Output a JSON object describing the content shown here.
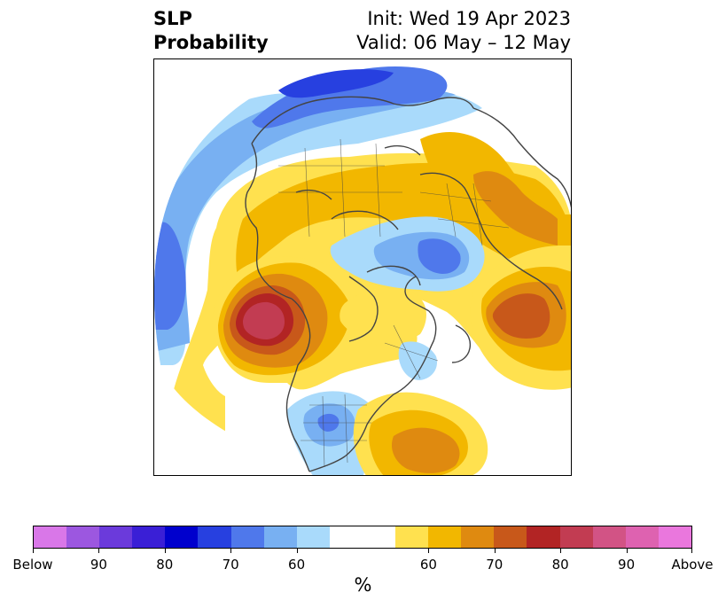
{
  "header": {
    "title_line1": "SLP",
    "title_line2": "Probability",
    "init_line": "Init: Wed 19 Apr 2023",
    "valid_line": "Valid: 06 May – 12 May"
  },
  "colorbar": {
    "unit": "%",
    "segments": [
      {
        "color": "#d977e8"
      },
      {
        "color": "#9c57e0"
      },
      {
        "color": "#6b3adb"
      },
      {
        "color": "#3a1fd6"
      },
      {
        "color": "#0000cd"
      },
      {
        "color": "#2740e0"
      },
      {
        "color": "#4f78eb"
      },
      {
        "color": "#78b0f2"
      },
      {
        "color": "#a9dafb"
      },
      {
        "color": "#ffffff"
      },
      {
        "color": "#ffe14f"
      },
      {
        "color": "#f2b700"
      },
      {
        "color": "#df8a10"
      },
      {
        "color": "#c8581a"
      },
      {
        "color": "#b22424"
      },
      {
        "color": "#c23c52"
      },
      {
        "color": "#d25385"
      },
      {
        "color": "#de62b0"
      },
      {
        "color": "#ea77dd"
      }
    ],
    "tick_labels": [
      "Below",
      "90",
      "80",
      "70",
      "60",
      "60",
      "70",
      "80",
      "90",
      "Above"
    ]
  },
  "map": {
    "colors": {
      "blue_light": "#a9dafb",
      "blue_mid": "#78b0f2",
      "blue_strong": "#4f78eb",
      "blue_deep": "#2740e0",
      "yellow": "#ffe14f",
      "gold": "#f2b700",
      "orange": "#df8a10",
      "rust": "#c8581a",
      "red": "#b22424",
      "crimson": "#c23c52",
      "coast": "#444444"
    }
  }
}
